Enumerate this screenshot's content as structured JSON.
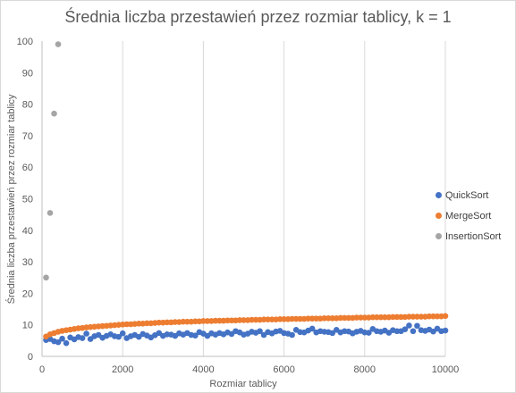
{
  "chart_data": {
    "type": "scatter",
    "title": "Średnia liczba przestawień przez rozmiar tablicy, k = 1",
    "xlabel": "Rozmiar tablicy",
    "ylabel": "Średnia liczba przestawień przez rozmiar tablicy",
    "xlim": [
      0,
      10000
    ],
    "ylim": [
      0,
      100
    ],
    "xticks": [
      0,
      2000,
      4000,
      6000,
      8000,
      10000
    ],
    "yticks": [
      0,
      10,
      20,
      30,
      40,
      50,
      60,
      70,
      80,
      90,
      100
    ],
    "grid": "vertical",
    "legend_position": "right",
    "series": [
      {
        "name": "QuickSort",
        "color": "#4472c4",
        "x": [
          100,
          200,
          300,
          400,
          500,
          600,
          700,
          800,
          900,
          1000,
          1100,
          1200,
          1300,
          1400,
          1500,
          1600,
          1700,
          1800,
          1900,
          2000,
          2100,
          2200,
          2300,
          2400,
          2500,
          2600,
          2700,
          2800,
          2900,
          3000,
          3100,
          3200,
          3300,
          3400,
          3500,
          3600,
          3700,
          3800,
          3900,
          4000,
          4100,
          4200,
          4300,
          4400,
          4500,
          4600,
          4700,
          4800,
          4900,
          5000,
          5100,
          5200,
          5300,
          5400,
          5500,
          5600,
          5700,
          5800,
          5900,
          6000,
          6100,
          6200,
          6300,
          6400,
          6500,
          6600,
          6700,
          6800,
          6900,
          7000,
          7100,
          7200,
          7300,
          7400,
          7500,
          7600,
          7700,
          7800,
          7900,
          8000,
          8100,
          8200,
          8300,
          8400,
          8500,
          8600,
          8700,
          8800,
          8900,
          9000,
          9100,
          9200,
          9300,
          9400,
          9500,
          9600,
          9700,
          9800,
          9900,
          10000
        ],
        "y": [
          5.2,
          5.5,
          4.8,
          4.5,
          5.6,
          4.2,
          6.0,
          5.4,
          6.1,
          5.8,
          7.2,
          5.5,
          6.4,
          6.8,
          5.9,
          6.5,
          7.0,
          6.4,
          6.2,
          7.3,
          5.8,
          6.4,
          6.8,
          6.2,
          7.1,
          6.6,
          6.0,
          6.7,
          7.4,
          6.5,
          7.0,
          6.9,
          6.5,
          7.3,
          6.9,
          7.4,
          6.8,
          6.6,
          7.7,
          7.2,
          6.5,
          7.3,
          6.9,
          7.4,
          7.0,
          7.6,
          7.1,
          8.0,
          7.6,
          6.9,
          7.2,
          7.8,
          7.5,
          8.0,
          6.8,
          7.7,
          7.3,
          7.9,
          8.1,
          7.4,
          7.2,
          6.8,
          8.4,
          7.7,
          7.6,
          8.2,
          8.8,
          7.6,
          8.0,
          7.8,
          7.7,
          7.4,
          8.4,
          7.6,
          8.0,
          7.9,
          7.3,
          7.8,
          8.1,
          7.6,
          7.5,
          8.7,
          8.0,
          7.8,
          8.2,
          7.5,
          8.3,
          8.0,
          8.0,
          8.6,
          9.8,
          8.0,
          9.7,
          8.3,
          8.1,
          8.5,
          7.9,
          8.8,
          8.0,
          8.2
        ]
      },
      {
        "name": "MergeSort",
        "color": "#ed7d31",
        "x": [
          100,
          200,
          300,
          400,
          500,
          600,
          700,
          800,
          900,
          1000,
          1100,
          1200,
          1300,
          1400,
          1500,
          1600,
          1700,
          1800,
          1900,
          2000,
          2100,
          2200,
          2300,
          2400,
          2500,
          2600,
          2700,
          2800,
          2900,
          3000,
          3100,
          3200,
          3300,
          3400,
          3500,
          3600,
          3700,
          3800,
          3900,
          4000,
          4100,
          4200,
          4300,
          4400,
          4500,
          4600,
          4700,
          4800,
          4900,
          5000,
          5100,
          5200,
          5300,
          5400,
          5500,
          5600,
          5700,
          5800,
          5900,
          6000,
          6100,
          6200,
          6300,
          6400,
          6500,
          6600,
          6700,
          6800,
          6900,
          7000,
          7100,
          7200,
          7300,
          7400,
          7500,
          7600,
          7700,
          7800,
          7900,
          8000,
          8100,
          8200,
          8300,
          8400,
          8500,
          8600,
          8700,
          8800,
          8900,
          9000,
          9100,
          9200,
          9300,
          9400,
          9500,
          9600,
          9700,
          9800,
          9900,
          10000
        ],
        "y": [
          6.3,
          7.0,
          7.4,
          7.8,
          8.1,
          8.3,
          8.5,
          8.7,
          8.9,
          9.0,
          9.2,
          9.3,
          9.4,
          9.5,
          9.6,
          9.7,
          9.8,
          9.9,
          10.0,
          10.1,
          10.2,
          10.2,
          10.3,
          10.4,
          10.4,
          10.5,
          10.5,
          10.6,
          10.7,
          10.7,
          10.8,
          10.8,
          10.9,
          10.9,
          11.0,
          11.0,
          11.0,
          11.1,
          11.1,
          11.2,
          11.2,
          11.2,
          11.3,
          11.3,
          11.3,
          11.4,
          11.4,
          11.4,
          11.5,
          11.5,
          11.5,
          11.6,
          11.6,
          11.6,
          11.7,
          11.7,
          11.7,
          11.7,
          11.8,
          11.8,
          11.8,
          11.9,
          11.9,
          11.9,
          11.9,
          12.0,
          12.0,
          12.0,
          12.0,
          12.1,
          12.1,
          12.1,
          12.1,
          12.2,
          12.2,
          12.2,
          12.2,
          12.3,
          12.3,
          12.3,
          12.3,
          12.4,
          12.4,
          12.4,
          12.4,
          12.4,
          12.5,
          12.5,
          12.5,
          12.5,
          12.6,
          12.6,
          12.6,
          12.6,
          12.6,
          12.7,
          12.7,
          12.7,
          12.7,
          12.8
        ]
      },
      {
        "name": "InsertionSort",
        "color": "#a5a5a5",
        "x": [
          100,
          200,
          300,
          400
        ],
        "y": [
          25,
          45.5,
          77,
          99
        ]
      }
    ]
  }
}
